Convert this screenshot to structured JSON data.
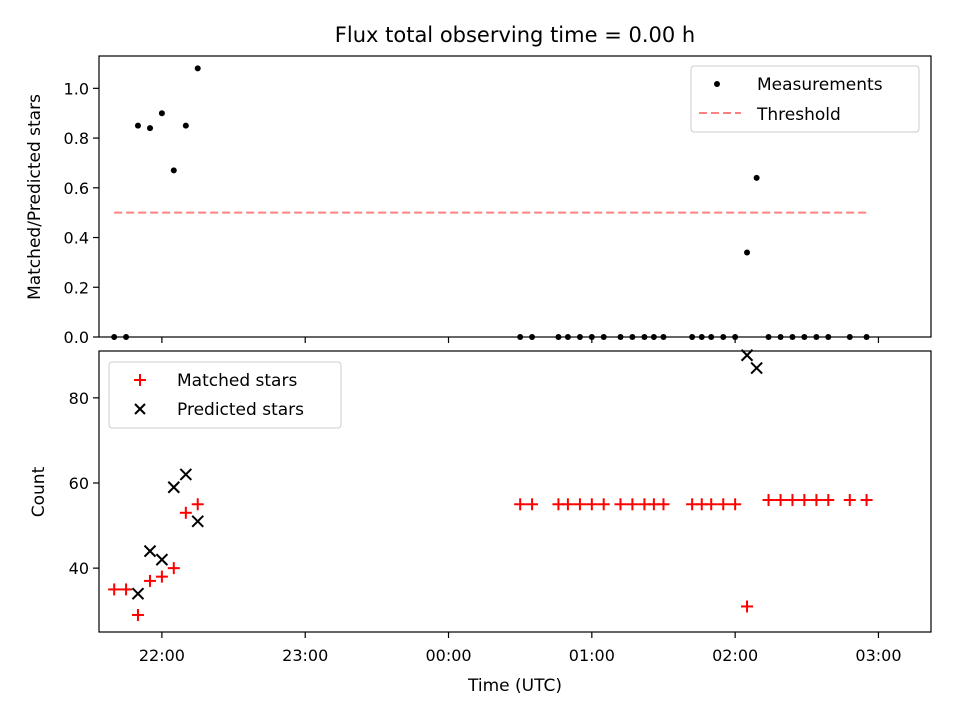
{
  "figure": {
    "title": "Flux total observing time = 0.00 h"
  },
  "chart_data": [
    {
      "type": "scatter",
      "title": "Flux total observing time = 0.00 h",
      "xlabel": "",
      "ylabel": "Matched/Predicted stars",
      "x_unit": "hours since 21:00 UTC",
      "xlim": [
        0.5611,
        6.3667
      ],
      "ylim": [
        0.0,
        1.13
      ],
      "yticks": [
        "0.0",
        "0.2",
        "0.4",
        "0.6",
        "0.8",
        "1.0"
      ],
      "grid": false,
      "legend_position": "top-right",
      "legend": [
        "Measurements",
        "Threshold"
      ],
      "series": [
        {
          "name": "Measurements",
          "marker": "dot",
          "color": "#000000",
          "x": [
            0.667,
            0.75,
            0.833,
            0.917,
            1.0,
            1.083,
            1.167,
            1.25,
            3.5,
            3.583,
            3.767,
            3.833,
            3.917,
            4.0,
            4.083,
            4.2,
            4.283,
            4.367,
            4.433,
            4.5,
            4.7,
            4.767,
            4.833,
            4.917,
            5.0,
            5.083,
            5.15,
            5.233,
            5.317,
            5.4,
            5.483,
            5.567,
            5.65,
            5.8,
            5.917
          ],
          "y": [
            0.0,
            0.0,
            0.85,
            0.84,
            0.9,
            0.67,
            0.85,
            1.08,
            0.0,
            0.0,
            0.0,
            0.0,
            0.0,
            0.0,
            0.0,
            0.0,
            0.0,
            0.0,
            0.0,
            0.0,
            0.0,
            0.0,
            0.0,
            0.0,
            0.0,
            0.34,
            0.64,
            0.0,
            0.0,
            0.0,
            0.0,
            0.0,
            0.0,
            0.0,
            0.0
          ]
        },
        {
          "name": "Threshold",
          "style": "dashed-line",
          "color": "#ff8080",
          "x": [
            0.667,
            5.917
          ],
          "y": [
            0.5,
            0.5
          ]
        }
      ]
    },
    {
      "type": "scatter",
      "title": "",
      "xlabel": "Time (UTC)",
      "ylabel": "Count",
      "x_unit": "hours since 21:00 UTC",
      "xlim": [
        0.5611,
        6.3667
      ],
      "ylim": [
        25.0,
        91.0
      ],
      "xticks": [
        "22:00",
        "23:00",
        "00:00",
        "01:00",
        "02:00",
        "03:00"
      ],
      "xtick_values": [
        1.0,
        2.0,
        3.0,
        4.0,
        5.0,
        6.0
      ],
      "yticks": [
        "40",
        "60",
        "80"
      ],
      "ytick_values": [
        40,
        60,
        80
      ],
      "grid": false,
      "legend_position": "top-left",
      "legend": [
        "Matched stars",
        "Predicted stars"
      ],
      "series": [
        {
          "name": "Matched stars",
          "marker": "plus",
          "color": "#ff0000",
          "x": [
            0.667,
            0.75,
            0.833,
            0.917,
            1.0,
            1.083,
            1.167,
            1.25,
            3.5,
            3.583,
            3.767,
            3.833,
            3.917,
            4.0,
            4.083,
            4.2,
            4.283,
            4.367,
            4.433,
            4.5,
            4.7,
            4.767,
            4.833,
            4.917,
            5.0,
            5.083,
            5.233,
            5.317,
            5.4,
            5.483,
            5.567,
            5.65,
            5.8,
            5.917
          ],
          "y": [
            35,
            35,
            29,
            37,
            38,
            40,
            53,
            55,
            55,
            55,
            55,
            55,
            55,
            55,
            55,
            55,
            55,
            55,
            55,
            55,
            55,
            55,
            55,
            55,
            55,
            31,
            56,
            56,
            56,
            56,
            56,
            56,
            56,
            56
          ]
        },
        {
          "name": "Predicted stars",
          "marker": "x",
          "color": "#000000",
          "x": [
            0.833,
            0.917,
            1.0,
            1.083,
            1.167,
            1.25,
            5.083,
            5.15
          ],
          "y": [
            34,
            44,
            42,
            59,
            62,
            51,
            90,
            87
          ]
        }
      ]
    }
  ]
}
